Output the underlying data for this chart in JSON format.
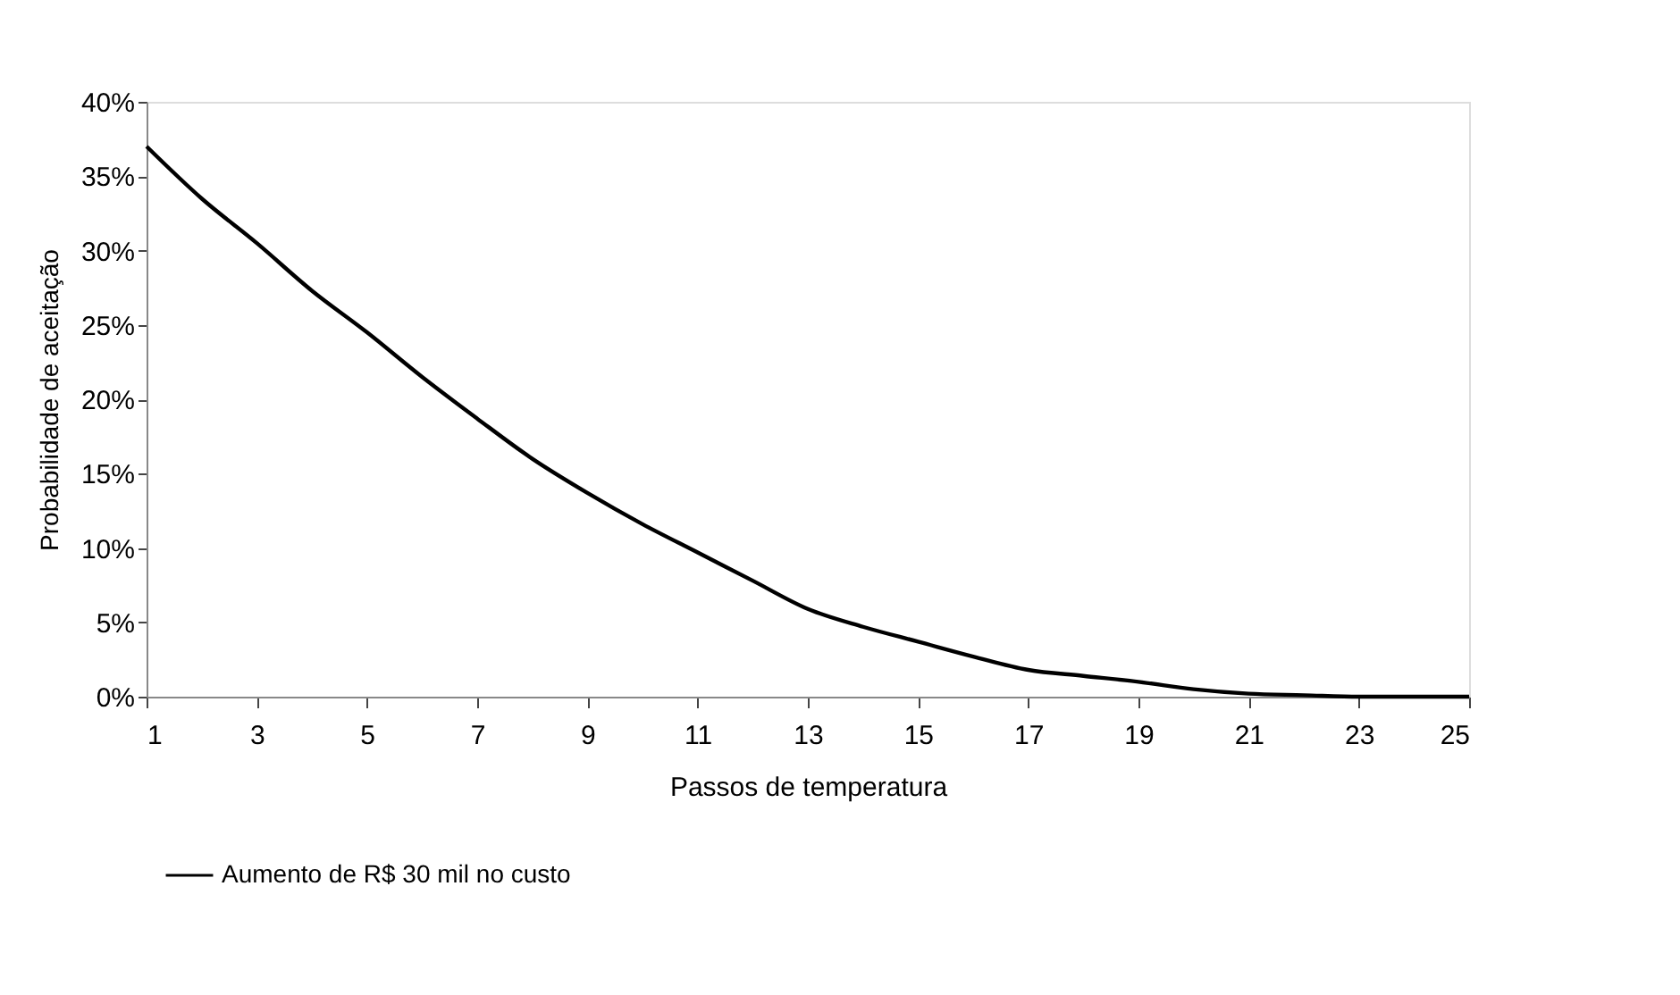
{
  "chart_data": {
    "type": "line",
    "xlabel": "Passos de temperatura",
    "ylabel": "Probabilidade de aceitação",
    "x": [
      1,
      2,
      3,
      4,
      5,
      6,
      7,
      8,
      9,
      10,
      11,
      12,
      13,
      14,
      15,
      16,
      17,
      18,
      19,
      20,
      21,
      22,
      23,
      24,
      25
    ],
    "series": [
      {
        "name": "Aumento de R$ 30 mil no custo",
        "color": "#000000",
        "values": [
          37,
          33.5,
          30.5,
          27.3,
          24.5,
          21.5,
          18.7,
          16,
          13.7,
          11.6,
          9.7,
          7.8,
          5.9,
          4.7,
          3.7,
          2.7,
          1.8,
          1.4,
          1.0,
          0.5,
          0.2,
          0.1,
          0,
          0,
          0
        ]
      }
    ],
    "xlim": [
      1,
      25
    ],
    "xticks": [
      1,
      3,
      5,
      7,
      9,
      11,
      13,
      15,
      17,
      19,
      21,
      23,
      25
    ],
    "ylim": [
      0,
      40
    ],
    "yticks": [
      {
        "value": 0,
        "label": "0%"
      },
      {
        "value": 5,
        "label": "5%"
      },
      {
        "value": 10,
        "label": "10%"
      },
      {
        "value": 15,
        "label": "15%"
      },
      {
        "value": 20,
        "label": "20%"
      },
      {
        "value": 25,
        "label": "25%"
      },
      {
        "value": 30,
        "label": "30%"
      },
      {
        "value": 35,
        "label": "35%"
      },
      {
        "value": 40,
        "label": "40%"
      }
    ],
    "grid": false,
    "legend": "bottom",
    "marker": "none",
    "line_style": "solid"
  }
}
